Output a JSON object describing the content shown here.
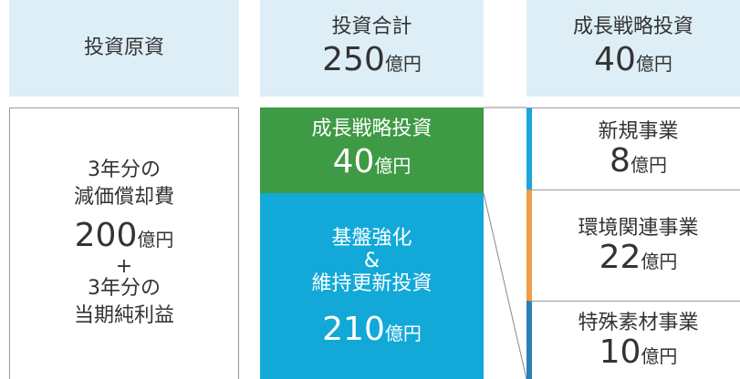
{
  "sources": {
    "title": "投資原資",
    "lines": [
      "3年分の",
      "減価償却費"
    ],
    "amount": "200",
    "unit": "億円",
    "plus": "+",
    "lines2": [
      "3年分の",
      "当期純利益"
    ]
  },
  "total": {
    "title": "投資合計",
    "amount": "250",
    "unit": "億円"
  },
  "growth_header": {
    "title": "成長戦略投資",
    "amount": "40",
    "unit": "億円"
  },
  "growth": {
    "title": "成長戦略投資",
    "amount": "40",
    "unit": "億円"
  },
  "base": {
    "lines": [
      "基盤強化",
      "&",
      "維持更新投資"
    ],
    "amount": "210",
    "unit": "億円"
  },
  "breakdown": [
    {
      "label": "新規事業",
      "amount": "8",
      "unit": "億円"
    },
    {
      "label": "環境関連事業",
      "amount": "22",
      "unit": "億円"
    },
    {
      "label": "特殊素材事業",
      "amount": "10",
      "unit": "億円"
    }
  ]
}
